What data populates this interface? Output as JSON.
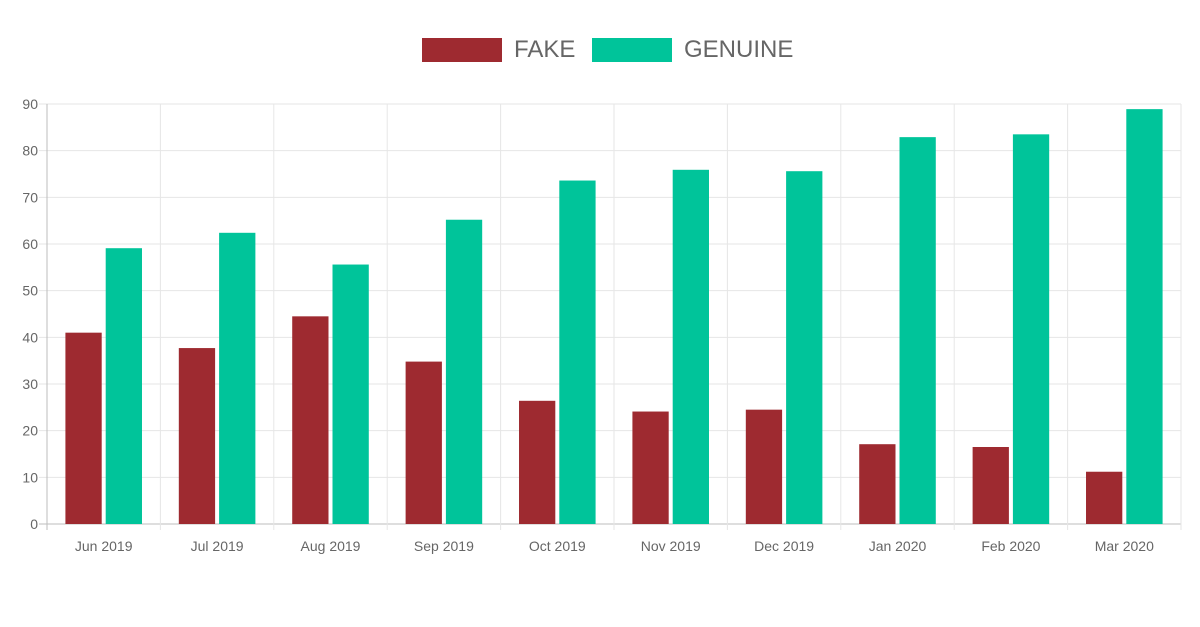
{
  "chart_data": {
    "type": "bar",
    "categories": [
      "Jun 2019",
      "Jul 2019",
      "Aug 2019",
      "Sep 2019",
      "Oct 2019",
      "Nov 2019",
      "Dec 2019",
      "Jan 2020",
      "Feb 2020",
      "Mar 2020"
    ],
    "series": [
      {
        "name": "FAKE",
        "color": "#9e2a30",
        "values": [
          41,
          37.7,
          44.5,
          34.8,
          26.4,
          24.1,
          24.5,
          17.1,
          16.5,
          11.2
        ]
      },
      {
        "name": "GENUINE",
        "color": "#00c49a",
        "values": [
          59.1,
          62.4,
          55.6,
          65.2,
          73.6,
          75.9,
          75.6,
          82.9,
          83.5,
          88.9
        ]
      }
    ],
    "y_ticks": [
      "0",
      "10",
      "20",
      "30",
      "40",
      "50",
      "60",
      "70",
      "80",
      "90"
    ],
    "ylim": [
      0,
      90
    ],
    "grid": true,
    "legend_position": "top-center",
    "title": "",
    "xlabel": "",
    "ylabel": ""
  }
}
